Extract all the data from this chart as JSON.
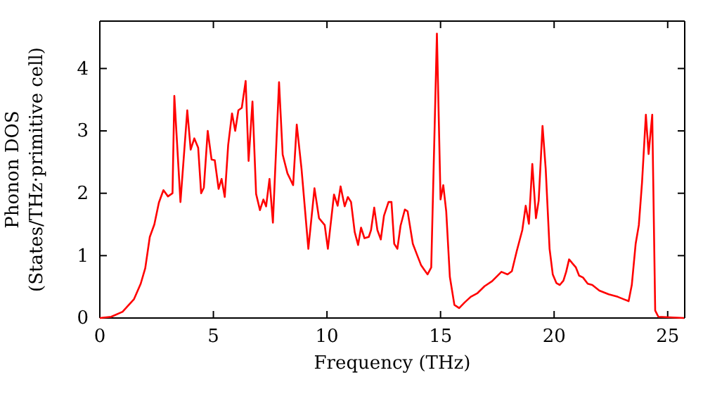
{
  "chart_data": {
    "type": "line",
    "xlabel": "Frequency (THz)",
    "ylabel": "Phonon DOS\n(States/THz·primitive cell)",
    "xlim": [
      0,
      25.75
    ],
    "ylim": [
      0,
      4.76
    ],
    "xticks": [
      0,
      5,
      10,
      15,
      20,
      25
    ],
    "yticks": [
      0,
      1,
      2,
      3,
      4
    ],
    "grid": false,
    "marker": "none",
    "line_style": "solid",
    "series": [
      {
        "color": "#ff0000",
        "x": [
          0,
          0.5,
          1,
          1.5,
          1.8,
          2.0,
          2.2,
          2.4,
          2.6,
          2.8,
          3.0,
          3.2,
          3.28,
          3.55,
          3.85,
          4.0,
          4.16,
          4.33,
          4.46,
          4.58,
          4.75,
          4.92,
          5.06,
          5.23,
          5.36,
          5.5,
          5.65,
          5.82,
          5.96,
          6.1,
          6.25,
          6.42,
          6.55,
          6.72,
          6.88,
          7.05,
          7.2,
          7.32,
          7.47,
          7.62,
          7.89,
          8.05,
          8.26,
          8.51,
          8.67,
          8.88,
          9.18,
          9.45,
          9.65,
          9.9,
          10.04,
          10.31,
          10.47,
          10.6,
          10.78,
          10.92,
          11.06,
          11.22,
          11.37,
          11.5,
          11.65,
          11.84,
          11.94,
          12.08,
          12.22,
          12.37,
          12.51,
          12.71,
          12.84,
          12.96,
          13.1,
          13.24,
          13.43,
          13.55,
          13.78,
          13.98,
          14.14,
          14.29,
          14.43,
          14.59,
          14.84,
          15.0,
          15.12,
          15.25,
          15.41,
          15.61,
          15.82,
          16.06,
          16.33,
          16.63,
          16.94,
          17.27,
          17.68,
          17.95,
          18.14,
          18.36,
          18.6,
          18.75,
          18.89,
          19.04,
          19.2,
          19.32,
          19.49,
          19.63,
          19.8,
          19.94,
          20.1,
          20.25,
          20.41,
          20.53,
          20.66,
          20.82,
          20.96,
          21.1,
          21.27,
          21.48,
          21.68,
          21.99,
          22.4,
          22.8,
          23.07,
          23.28,
          23.42,
          23.59,
          23.73,
          23.87,
          24.04,
          24.16,
          24.32,
          24.45,
          24.59,
          25.72
        ],
        "values": [
          0,
          0.02,
          0.1,
          0.3,
          0.55,
          0.8,
          1.3,
          1.5,
          1.85,
          2.05,
          1.95,
          2.0,
          3.56,
          1.86,
          3.33,
          2.7,
          2.88,
          2.73,
          2.0,
          2.09,
          3.0,
          2.54,
          2.53,
          2.07,
          2.23,
          1.94,
          2.77,
          3.28,
          3.0,
          3.33,
          3.37,
          3.8,
          2.52,
          3.47,
          1.99,
          1.73,
          1.9,
          1.79,
          2.23,
          1.53,
          3.78,
          2.62,
          2.32,
          2.13,
          3.1,
          2.39,
          1.11,
          2.08,
          1.6,
          1.49,
          1.11,
          1.98,
          1.8,
          2.11,
          1.79,
          1.94,
          1.86,
          1.38,
          1.17,
          1.45,
          1.28,
          1.3,
          1.41,
          1.77,
          1.41,
          1.26,
          1.64,
          1.86,
          1.86,
          1.19,
          1.11,
          1.48,
          1.74,
          1.71,
          1.19,
          1.0,
          0.85,
          0.77,
          0.7,
          0.81,
          4.56,
          1.9,
          2.13,
          1.71,
          0.66,
          0.21,
          0.16,
          0.25,
          0.34,
          0.4,
          0.51,
          0.59,
          0.74,
          0.7,
          0.75,
          1.08,
          1.41,
          1.8,
          1.51,
          2.47,
          1.6,
          1.88,
          3.08,
          2.39,
          1.11,
          0.7,
          0.56,
          0.53,
          0.6,
          0.74,
          0.94,
          0.87,
          0.81,
          0.68,
          0.65,
          0.55,
          0.53,
          0.44,
          0.38,
          0.34,
          0.3,
          0.27,
          0.53,
          1.19,
          1.49,
          2.17,
          3.26,
          2.63,
          3.26,
          0.12,
          0.02,
          0
        ]
      }
    ]
  }
}
